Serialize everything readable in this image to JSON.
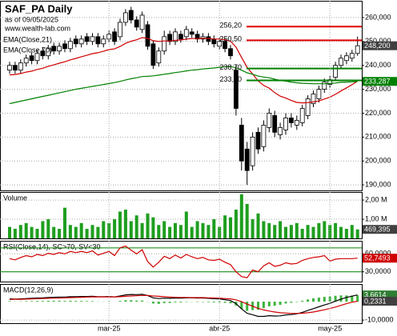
{
  "header": {
    "title": "SAF_PA Daily",
    "subtitle": "as of 09/05/2025",
    "source": "www.wealth-lab.com"
  },
  "chart_data": [
    {
      "type": "candlestick",
      "open": [
        238,
        240,
        238,
        241,
        244,
        242,
        246,
        244,
        248,
        246,
        249,
        247,
        251,
        249,
        252,
        250,
        252,
        249,
        251,
        254,
        252,
        258,
        263,
        259,
        255,
        257,
        249,
        241,
        246,
        253,
        250,
        253,
        252,
        254,
        253,
        251,
        252,
        251,
        248,
        250,
        247,
        238,
        215,
        205,
        198,
        212,
        206,
        214,
        219,
        211,
        213,
        218,
        215,
        216,
        219,
        224,
        226,
        230,
        232,
        235,
        240,
        242,
        243,
        245
      ],
      "high": [
        241.5,
        241.5,
        242.5,
        244.5,
        245.5,
        246.5,
        247.5,
        248.5,
        249.5,
        249.5,
        250.5,
        251.5,
        252.5,
        252.5,
        253.5,
        253.5,
        253.5,
        252.5,
        254.5,
        255.5,
        259.5,
        263.5,
        264.5,
        260.5,
        262.5,
        258.5,
        250.5,
        247.5,
        254.5,
        254.5,
        255.5,
        254.5,
        256.5,
        255.5,
        254.5,
        253.5,
        253.5,
        252.5,
        251.5,
        251.5,
        248.5,
        240,
        218,
        208,
        212,
        214,
        217,
        222,
        221,
        216,
        220,
        220,
        219,
        223.5,
        227.5,
        229.5,
        231.5,
        234.5,
        235.5,
        241.5,
        244.5,
        245.5,
        246.5,
        252
      ],
      "low": [
        236.5,
        236.5,
        236.5,
        239.5,
        240.5,
        240.5,
        242.5,
        242.5,
        244.5,
        244.5,
        245.5,
        245.5,
        247.5,
        247.5,
        248.5,
        248.5,
        247.5,
        247.5,
        249.5,
        248.5,
        250.5,
        256.5,
        257.5,
        254.5,
        253.5,
        246.5,
        238.5,
        239.5,
        244.5,
        248.5,
        248.5,
        249.5,
        250.5,
        251.5,
        249.5,
        249.5,
        248.5,
        247.5,
        246.5,
        245.5,
        242.5,
        219,
        196,
        190,
        196,
        203,
        204,
        212,
        210,
        209,
        211,
        214,
        213,
        214.5,
        217.5,
        222.5,
        224.5,
        228.5,
        230.5,
        233.5,
        238.5,
        240.5,
        241.5,
        244
      ],
      "close": [
        240,
        238,
        241,
        243,
        242,
        245,
        244,
        247,
        246,
        248,
        247,
        250,
        249,
        251,
        250,
        252,
        249,
        251,
        253,
        250,
        258,
        262,
        259,
        256,
        261,
        248,
        240,
        246,
        252,
        250,
        254,
        251,
        255,
        253,
        251,
        252,
        250,
        249,
        250,
        247,
        244,
        222,
        200,
        196,
        210,
        205,
        215,
        220,
        212,
        214,
        218,
        216,
        217,
        222,
        226,
        228,
        230,
        233,
        234,
        240,
        243,
        244,
        245,
        248.2
      ],
      "close_label": "248,200",
      "series": [
        {
          "name": "EMA(Close,21)",
          "color": "#d00000",
          "values": [
            236,
            236.2,
            236.6,
            237.2,
            237.6,
            238.3,
            238.8,
            239.6,
            240.2,
            240.9,
            241.5,
            242.3,
            242.9,
            243.6,
            244.2,
            244.9,
            245.3,
            245.9,
            246.6,
            246.9,
            247.9,
            249.2,
            250.1,
            250.7,
            251.6,
            251.3,
            250.3,
            250,
            250.2,
            250.2,
            250.5,
            250.6,
            251,
            251.2,
            251.2,
            251.3,
            251.2,
            251,
            251,
            250.7,
            250.1,
            247.6,
            243.3,
            239.2,
            236.4,
            233.5,
            231.6,
            230.5,
            228.6,
            227.1,
            226.3,
            225.3,
            224.5,
            224.3,
            224.4,
            224.7,
            225.1,
            225.9,
            226.7,
            227.9,
            229.3,
            230.6,
            231.9,
            233.4
          ]
        },
        {
          "name": "EMA(Close,70)",
          "color": "#008000",
          "last_label": "233,287",
          "values": [
            224,
            224.5,
            225,
            225.5,
            226,
            226.5,
            227,
            227.5,
            228,
            228.5,
            229,
            229.5,
            230,
            230.4,
            230.8,
            231.2,
            231.6,
            232,
            232.4,
            232.8,
            233.3,
            233.9,
            234.4,
            234.8,
            235.3,
            235.4,
            235.6,
            235.9,
            236.3,
            236.6,
            237,
            237.3,
            237.7,
            238,
            238.2,
            238.5,
            238.7,
            238.9,
            239.2,
            239.4,
            239.5,
            239,
            238,
            236.9,
            236.3,
            235.5,
            235.1,
            234.8,
            234.2,
            233.7,
            233.4,
            233,
            232.7,
            232.5,
            232.4,
            232.3,
            232.3,
            232.3,
            232.4,
            232.6,
            232.9,
            233,
            233.1,
            233.287
          ]
        }
      ],
      "annotations": [
        {
          "value": 256.2,
          "label": "256,20",
          "color": "#e00000"
        },
        {
          "value": 250.5,
          "label": "250,50",
          "color": "#e00000"
        },
        {
          "value": 238.7,
          "label": "238,70",
          "color": "#008000"
        },
        {
          "value": 233.7,
          "label": "233,70",
          "color": "#008000"
        }
      ],
      "ylim": [
        187.7,
        267
      ],
      "yticks": [
        {
          "value": 190,
          "label": "190,000"
        },
        {
          "value": 200,
          "label": "200,000"
        },
        {
          "value": 210,
          "label": "210,000"
        },
        {
          "value": 220,
          "label": "220,000"
        },
        {
          "value": 230,
          "label": "230,000"
        },
        {
          "value": 240,
          "label": "240,000"
        },
        {
          "value": 250,
          "label": "250,000"
        },
        {
          "value": 260,
          "label": "260,000"
        }
      ],
      "grid": true
    },
    {
      "type": "bar",
      "title": "Volume",
      "color": "#1e9e1e",
      "last_label": "469,395",
      "values": [
        0.6,
        0.5,
        0.7,
        0.8,
        0.6,
        0.5,
        0.9,
        1.0,
        0.6,
        0.5,
        1.6,
        0.7,
        0.6,
        0.8,
        0.5,
        0.7,
        0.6,
        0.9,
        0.8,
        1.0,
        1.4,
        1.5,
        0.9,
        1.2,
        0.8,
        1.3,
        1.1,
        0.7,
        0.9,
        0.6,
        0.8,
        0.7,
        1.4,
        0.6,
        0.9,
        0.8,
        0.7,
        1.0,
        0.6,
        1.2,
        1.1,
        1.5,
        2.3,
        1.8,
        1.0,
        1.3,
        0.9,
        0.8,
        0.7,
        0.9,
        0.6,
        0.7,
        0.8,
        0.5,
        0.7,
        0.6,
        0.8,
        0.9,
        0.7,
        0.8,
        0.6,
        0.5,
        0.7,
        0.469395
      ],
      "ylim": [
        0,
        2.42
      ],
      "yticks": [
        {
          "value": 1,
          "label": "1,00 M"
        },
        {
          "value": 2,
          "label": "2,00 M"
        }
      ]
    },
    {
      "type": "line",
      "title": "RSI(Close,14), SC>70, SV<30",
      "levels": [
        {
          "value": 70,
          "color": "#008000"
        },
        {
          "value": 30,
          "color": "#008000"
        }
      ],
      "series": [
        {
          "name": "RSI",
          "color": "#d00000",
          "last_label": "52,7493",
          "values": [
            52,
            50,
            54,
            57,
            55,
            59,
            57,
            61,
            59,
            62,
            60,
            64,
            62,
            64,
            62,
            65,
            58,
            61,
            64,
            57,
            70,
            73,
            66,
            60,
            67,
            47,
            38,
            46,
            56,
            52,
            58,
            53,
            59,
            55,
            52,
            54,
            50,
            49,
            51,
            46,
            42,
            30,
            22,
            20,
            33,
            30,
            40,
            45,
            39,
            41,
            45,
            43,
            44,
            49,
            52,
            54,
            55,
            57,
            48,
            51,
            52,
            52,
            52,
            52.7493
          ]
        }
      ],
      "ylim": [
        13.6,
        81.8
      ],
      "yticks": [
        {
          "value": 30,
          "label": "30,0000"
        },
        {
          "value": 60,
          "label": "60,0000"
        }
      ]
    },
    {
      "type": "macd",
      "title": "MACD(12,26,9)",
      "categories": [
        null,
        null,
        null,
        null,
        null,
        null,
        null,
        null,
        null,
        null,
        null,
        null,
        null,
        null,
        null,
        null,
        null,
        null,
        "mar-25",
        null,
        null,
        null,
        null,
        null,
        null,
        null,
        null,
        null,
        null,
        null,
        null,
        null,
        null,
        null,
        null,
        null,
        null,
        null,
        "abr-25",
        null,
        null,
        null,
        null,
        null,
        null,
        null,
        null,
        null,
        null,
        null,
        null,
        null,
        null,
        null,
        null,
        null,
        null,
        null,
        "may-25",
        null,
        null,
        null,
        null,
        null
      ],
      "histogram": {
        "color": "#3cb43c",
        "values": [
          0.3,
          0.1,
          0.2,
          0.3,
          0.3,
          0.4,
          0.4,
          0.5,
          0.5,
          0.5,
          0.4,
          0.5,
          0.4,
          0.4,
          0.3,
          0.3,
          0.1,
          0.1,
          0.2,
          0,
          0.4,
          0.8,
          0.8,
          0.6,
          0.6,
          -0.1,
          -1.0,
          -1.2,
          -0.8,
          -0.7,
          -0.4,
          -0.4,
          -0.2,
          -0.1,
          -0.2,
          -0.2,
          -0.3,
          -0.4,
          -0.4,
          -0.6,
          -0.9,
          -2.1,
          -3.9,
          -5.0,
          -4.6,
          -4.4,
          -3.5,
          -2.5,
          -2.2,
          -1.7,
          -1.0,
          -0.6,
          -0.2,
          0.5,
          1.2,
          1.8,
          2.2,
          2.6,
          2.8,
          3.2,
          3.4,
          3.4,
          3.3,
          3.4283
        ]
      },
      "series": [
        {
          "name": "MACD",
          "color": "#000000",
          "last_label": "3,6614",
          "badge": "#2e7d32",
          "values": [
            1.5,
            1.4,
            1.5,
            1.7,
            1.8,
            2.0,
            2.1,
            2.3,
            2.4,
            2.5,
            2.5,
            2.7,
            2.7,
            2.8,
            2.8,
            2.9,
            2.7,
            2.7,
            2.8,
            2.6,
            3.1,
            3.7,
            3.9,
            3.8,
            4.0,
            3.3,
            2.1,
            1.7,
            1.9,
            1.8,
            2.0,
            1.9,
            2.1,
            2.1,
            2.0,
            2.0,
            1.8,
            1.6,
            1.5,
            1.1,
            0.6,
            -1.1,
            -3.9,
            -6.3,
            -7.1,
            -8.0,
            -8.0,
            -7.6,
            -7.8,
            -7.7,
            -7.2,
            -7.0,
            -6.6,
            -5.8,
            -4.8,
            -3.8,
            -2.8,
            -1.8,
            -0.9,
            0.3,
            1.4,
            2.3,
            3.0,
            3.6614
          ]
        },
        {
          "name": "Signal",
          "color": "#d00000",
          "last_label": "0,2331",
          "badge": "#404040",
          "values": [
            1.2,
            1.3,
            1.3,
            1.4,
            1.5,
            1.6,
            1.7,
            1.8,
            1.9,
            2.0,
            2.1,
            2.2,
            2.3,
            2.4,
            2.5,
            2.6,
            2.6,
            2.6,
            2.6,
            2.6,
            2.7,
            2.9,
            3.1,
            3.2,
            3.4,
            3.4,
            3.1,
            2.9,
            2.7,
            2.5,
            2.4,
            2.3,
            2.3,
            2.2,
            2.2,
            2.2,
            2.1,
            2.0,
            1.9,
            1.7,
            1.5,
            1.0,
            0.0,
            -1.3,
            -2.5,
            -3.6,
            -4.5,
            -5.1,
            -5.6,
            -6.0,
            -6.2,
            -6.4,
            -6.4,
            -6.3,
            -6.0,
            -5.6,
            -5.0,
            -4.4,
            -3.7,
            -2.9,
            -2.0,
            -1.1,
            -0.3,
            0.2331
          ]
        }
      ],
      "ylim": [
        -11.7,
        9.6
      ],
      "yticks": [
        {
          "value": -10,
          "label": "-10,0000"
        }
      ]
    }
  ]
}
